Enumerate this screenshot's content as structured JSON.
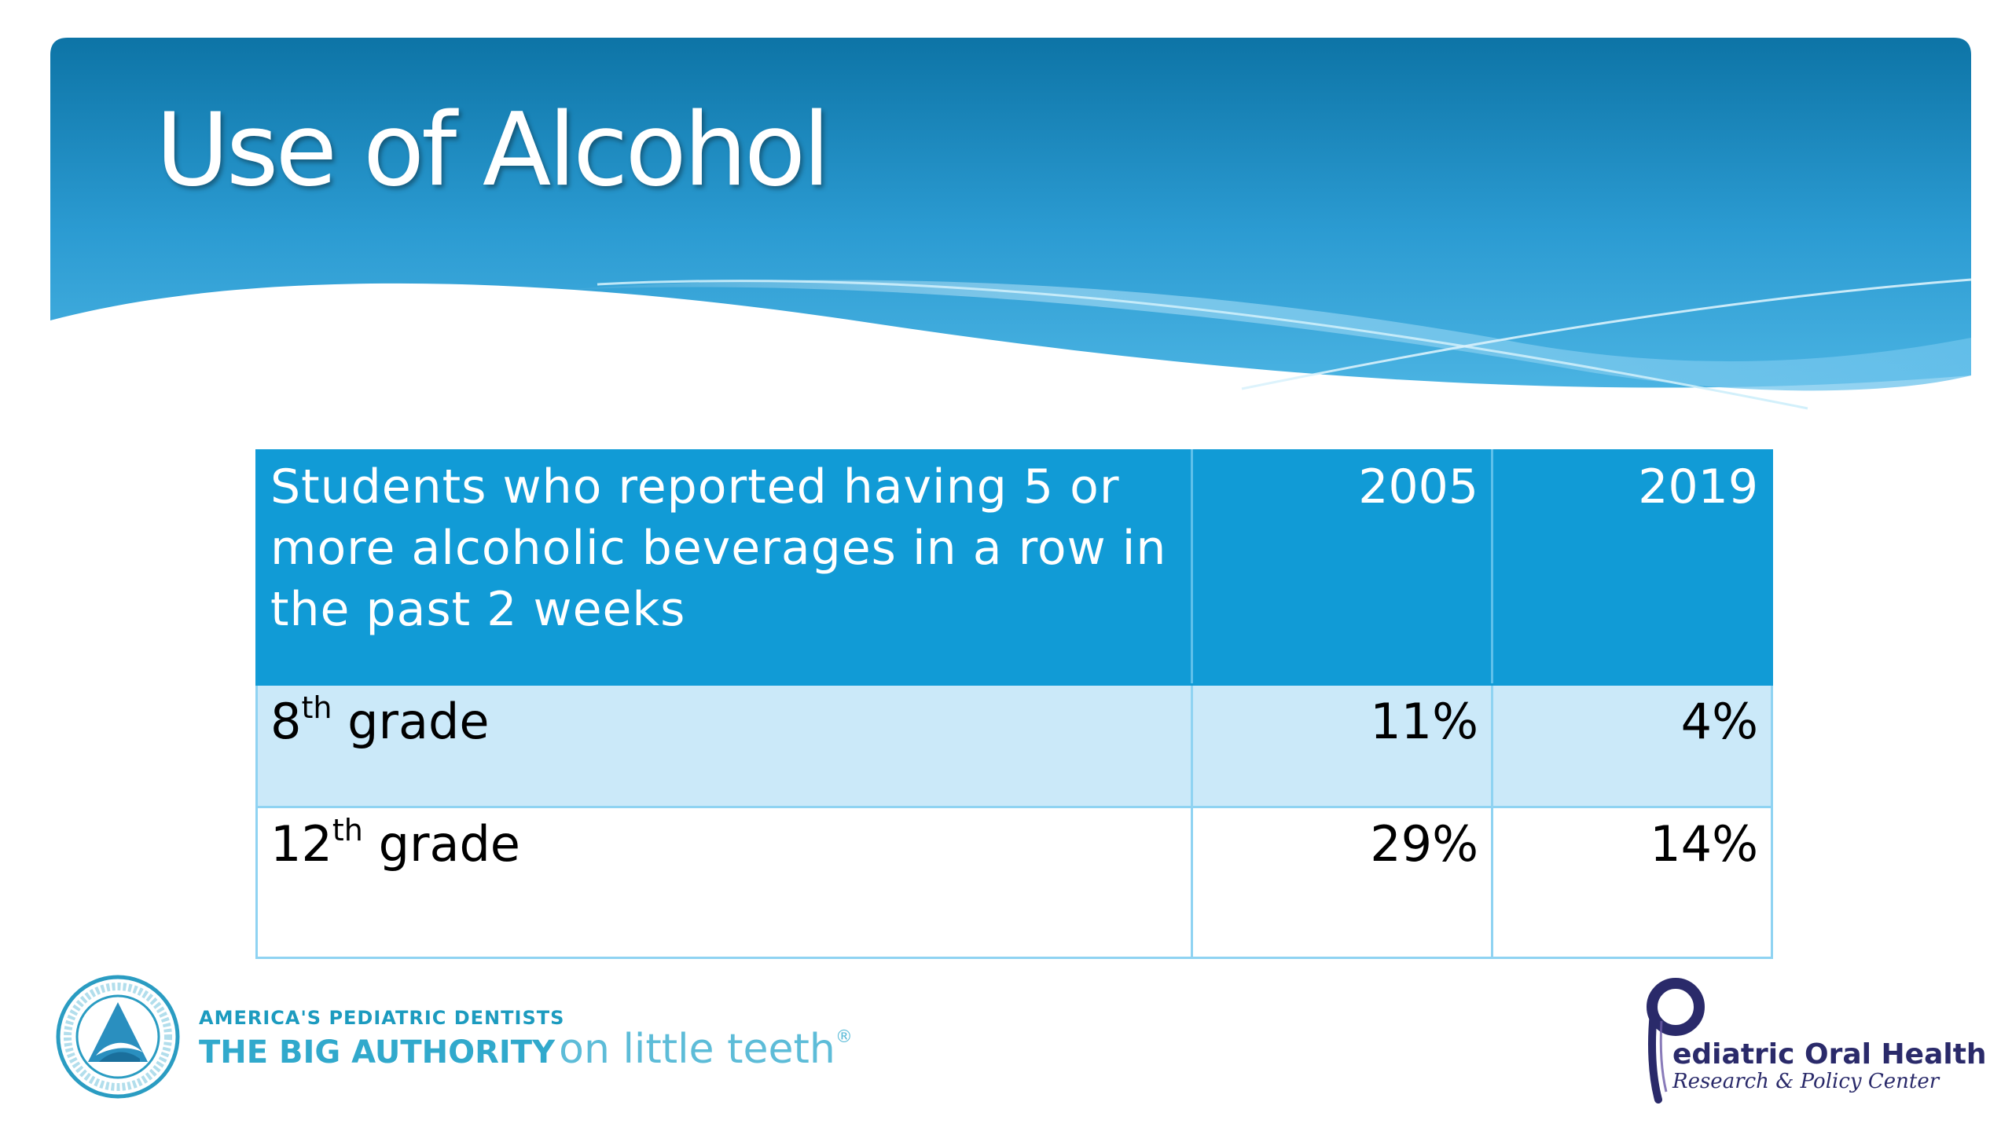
{
  "slide": {
    "title": "Use of Alcohol"
  },
  "table": {
    "header": {
      "description": "Students who reported having 5 or more alcoholic beverages in a row in the past 2 weeks",
      "year_1": "2005",
      "year_2": "2019"
    },
    "rows": [
      {
        "grade_num": "8",
        "grade_sup": "th",
        "grade_word": "grade",
        "value_2005": "11%",
        "value_2019": "4%"
      },
      {
        "grade_num": "12",
        "grade_sup": "th",
        "grade_word": "grade",
        "value_2005": "29%",
        "value_2019": "14%"
      }
    ]
  },
  "footer": {
    "aapd": {
      "icon": "aapd-seal-icon",
      "tagline_top": "AMERICA'S PEDIATRIC DENTISTS",
      "tagline_bold": "THE BIG AUTHORITY",
      "tagline_light": "on little teeth",
      "trademark": "®"
    },
    "porh": {
      "icon": "porh-p-logo-icon",
      "name": "ediatric Oral Health",
      "subtitle": "Research & Policy Center"
    }
  },
  "colors": {
    "banner_dark": "#0d74a6",
    "banner_light": "#4ab3e2",
    "header_fill": "#119bd6",
    "row_band": "#cbe9f9",
    "border": "#8fd3f2"
  }
}
